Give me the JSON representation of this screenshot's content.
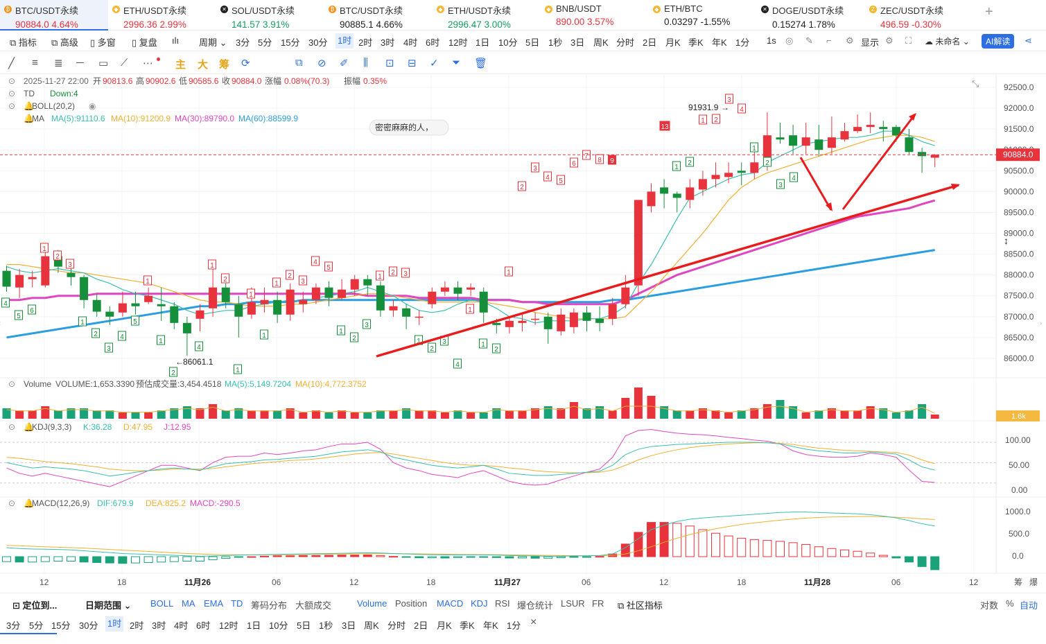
{
  "tabs": [
    {
      "name": "BTC/USDT永续",
      "value": "90884.0  4.64%",
      "dir": "up",
      "icon": "bitcoin-icon",
      "active": true
    },
    {
      "name": "ETH/USDT永续",
      "value": "2996.36  2.99%",
      "dir": "up",
      "icon": "ethereum-icon"
    },
    {
      "name": "SOL/USDT永续",
      "value": "141.57  3.91%",
      "dir": "dn",
      "icon": "solana-icon"
    },
    {
      "name": "BTC/USDT永续",
      "value": "90885.1  4.66%",
      "dir": "blk",
      "icon": "bitcoin-icon"
    },
    {
      "name": "ETH/USDT永续",
      "value": "2996.47  3.00%",
      "dir": "dn",
      "icon": "ethereum-icon"
    },
    {
      "name": "BNB/USDT",
      "value": "890.00  3.57%",
      "dir": "up",
      "icon": "bnb-icon"
    },
    {
      "name": "ETH/BTC",
      "value": "0.03297  -1.55%",
      "dir": "blk",
      "icon": "ethereum-icon"
    },
    {
      "name": "DOGE/USDT永续",
      "value": "0.15274  1.78%",
      "dir": "blk",
      "icon": "dogecoin-icon"
    },
    {
      "name": "ZEC/USDT永续",
      "value": "496.59  -0.30%",
      "dir": "up",
      "icon": "zcash-icon"
    }
  ],
  "add_tab": "+",
  "toolbar": {
    "left": [
      "指标",
      "高级",
      "多窗",
      "复盘"
    ],
    "period_label": "周期",
    "periods": [
      "3分",
      "5分",
      "15分",
      "30分",
      "1时",
      "2时",
      "3时",
      "4时",
      "6时",
      "12时",
      "1日",
      "10分",
      "5日",
      "1秒",
      "3日",
      "周K",
      "分时",
      "2日",
      "月K",
      "季K",
      "年K",
      "1分"
    ],
    "selected_period": "1时",
    "interval": "1s",
    "display": "显示",
    "unnamed": "未命名",
    "ai_button": "AI解读"
  },
  "drawbar": {
    "labels": [
      "主",
      "大",
      "筹"
    ]
  },
  "info": {
    "time": "2025-11-27 22:00",
    "open_label": "开",
    "open": "90813.6",
    "high_label": "高",
    "high": "90902.6",
    "low_label": "低",
    "low": "90585.6",
    "close_label": "收",
    "close": "90884.0",
    "change_label": "涨幅",
    "change": "0.08%(70.3)",
    "amp_label": "振幅",
    "amp": "0.35%",
    "td": "TD",
    "td_val": "Down:4",
    "boll": "BOLL(20,2)",
    "ma_label": "MA",
    "ma5": "MA(5):91110.6",
    "ma10": "MA(10):91200.9",
    "ma30": "MA(30):89790.0",
    "ma60": "MA(60):88599.9"
  },
  "annotation": "密密麻麻的人，",
  "high_mark": "91931.9",
  "low_mark": "86061.1",
  "price_tag": "90884.0",
  "price_axis": [
    "92500.0",
    "92000.0",
    "91500.0",
    "91000.0",
    "90500.0",
    "90000.0",
    "89500.0",
    "89000.0",
    "88500.0",
    "88000.0",
    "87500.0",
    "87000.0",
    "86500.0",
    "86000.0"
  ],
  "volume": {
    "label": "Volume",
    "vol": "VOLUME:1,653.3390",
    "est": "预估成交量:3,454.4518",
    "ma5": "MA(5):5,149.7204",
    "ma10": "MA(10):4,772.3752",
    "tag": "1.6k"
  },
  "kdj": {
    "label": "KDJ(9,3,3)",
    "k": "K:36.28",
    "d": "D:47.95",
    "j": "J:12.95",
    "axis": [
      "100.00",
      "50.00",
      "0.00"
    ]
  },
  "macd": {
    "label": "MACD(12,26,9)",
    "dif": "DIF:679.9",
    "dea": "DEA:825.2",
    "macd": "MACD:-290.5",
    "axis": [
      "1000.0",
      "500.0",
      "0.0"
    ]
  },
  "time_axis": [
    "12",
    "18",
    "11月26",
    "06",
    "12",
    "18",
    "11月27",
    "06",
    "12",
    "18",
    "11月28",
    "06",
    "12",
    "筹",
    "爆"
  ],
  "bottom1": {
    "locate": "定位到...",
    "range": "日期范围",
    "indicators": [
      "BOLL",
      "MA",
      "EMA",
      "TD",
      "筹码分布",
      "大额成交"
    ],
    "subs": [
      "Volume",
      "Position",
      "MACD",
      "KDJ",
      "RSI",
      "爆仓统计",
      "LSUR",
      "FR"
    ],
    "community": "社区指标",
    "right": [
      "对数",
      "%",
      "自动"
    ]
  },
  "bottom2": {
    "periods": [
      "3分",
      "5分",
      "15分",
      "30分",
      "1时",
      "2时",
      "3时",
      "4时",
      "6时",
      "12时",
      "1日",
      "10分",
      "5日",
      "1秒",
      "3日",
      "周K",
      "分时",
      "2日",
      "月K",
      "季K",
      "年K",
      "1分"
    ],
    "selected": "1时",
    "close": "×"
  },
  "chart_data": {
    "type": "candlestick",
    "ylim": [
      85700,
      92700
    ],
    "candles": [
      [
        88100,
        87720,
        88220,
        87600
      ],
      [
        87700,
        88000,
        88150,
        87450
      ],
      [
        87900,
        87950,
        88100,
        87700
      ],
      [
        87750,
        88450,
        88550,
        87700
      ],
      [
        88450,
        88200,
        88600,
        88050
      ],
      [
        88050,
        87950,
        88150,
        87750
      ],
      [
        87950,
        87400,
        88000,
        87200
      ],
      [
        87400,
        87120,
        87550,
        87000
      ],
      [
        87120,
        87000,
        87250,
        86800
      ],
      [
        87100,
        87320,
        87600,
        87000
      ],
      [
        87320,
        87250,
        87600,
        87050
      ],
      [
        87350,
        87500,
        87700,
        87300
      ],
      [
        87300,
        87250,
        87700,
        86900
      ],
      [
        87250,
        86850,
        87350,
        86700
      ],
      [
        86850,
        86600,
        87000,
        86060
      ],
      [
        86950,
        87150,
        87300,
        86650
      ],
      [
        87200,
        87700,
        88200,
        87000
      ],
      [
        87700,
        87350,
        87800,
        87200
      ],
      [
        87300,
        87000,
        87500,
        86500
      ],
      [
        87050,
        87350,
        87700,
        86950
      ],
      [
        87300,
        87400,
        87700,
        87100
      ],
      [
        87400,
        87050,
        87600,
        86850
      ],
      [
        87050,
        87650,
        87800,
        86900
      ],
      [
        87300,
        87400,
        87600,
        87100
      ],
      [
        87400,
        87700,
        87800,
        87300
      ],
      [
        87700,
        87450,
        87850,
        87250
      ],
      [
        87450,
        87650,
        87900,
        87400
      ],
      [
        87650,
        87900,
        88000,
        87500
      ],
      [
        87900,
        87750,
        88000,
        87500
      ],
      [
        87750,
        87150,
        87850,
        87000
      ],
      [
        87150,
        87250,
        87400,
        87000
      ],
      [
        87200,
        87000,
        87300,
        86700
      ],
      [
        87000,
        87000,
        87150,
        86800
      ],
      [
        87300,
        87600,
        87700,
        87200
      ],
      [
        87600,
        87700,
        87850,
        87500
      ],
      [
        87700,
        87550,
        87850,
        87400
      ],
      [
        87650,
        87700,
        87800,
        87500
      ],
      [
        87600,
        87100,
        87700,
        86850
      ],
      [
        86850,
        86800,
        86950,
        86600
      ],
      [
        86750,
        86900,
        87000,
        86600
      ],
      [
        86850,
        86900,
        87050,
        86650
      ],
      [
        86950,
        86950,
        87100,
        86800
      ],
      [
        87000,
        86700,
        87100,
        86350
      ],
      [
        86650,
        87050,
        87200,
        86550
      ],
      [
        86750,
        87100,
        87200,
        86600
      ],
      [
        87100,
        86900,
        87250,
        86650
      ],
      [
        86950,
        86850,
        87250,
        86650
      ],
      [
        86950,
        87300,
        87450,
        86800
      ],
      [
        87300,
        87700,
        88000,
        87200
      ],
      [
        87750,
        89800,
        89800,
        87500
      ],
      [
        89650,
        90000,
        90200,
        89500
      ],
      [
        90100,
        89950,
        90300,
        89600
      ],
      [
        89950,
        89850,
        90000,
        89500
      ],
      [
        89800,
        90100,
        90300,
        89600
      ],
      [
        90050,
        90300,
        90500,
        89900
      ],
      [
        90300,
        90400,
        90700,
        90100
      ],
      [
        90350,
        90450,
        90700,
        90200
      ],
      [
        90500,
        90450,
        90700,
        90150
      ],
      [
        90450,
        90700,
        91000,
        90300
      ],
      [
        90650,
        91350,
        91900,
        90500
      ],
      [
        91300,
        91250,
        91650,
        91150
      ],
      [
        91350,
        91100,
        91600,
        90900
      ],
      [
        91100,
        91300,
        91650,
        90900
      ],
      [
        91250,
        91000,
        91600,
        90850
      ],
      [
        91050,
        91300,
        91800,
        90900
      ],
      [
        91250,
        91450,
        91650,
        91200
      ],
      [
        91450,
        91550,
        91850,
        91400
      ],
      [
        91550,
        91600,
        91900,
        91400
      ],
      [
        91550,
        91500,
        91700,
        91200
      ],
      [
        91550,
        91350,
        91600,
        91200
      ],
      [
        91300,
        90950,
        91500,
        90900
      ],
      [
        90950,
        90850,
        91050,
        90450
      ],
      [
        90813,
        90884,
        90902,
        90585
      ]
    ],
    "ma5": [
      88200,
      88100,
      88050,
      88100,
      88150,
      88100,
      88050,
      87900,
      87800,
      87650,
      87550,
      87500,
      87400,
      87300,
      87150,
      87050,
      87100,
      87150,
      87150,
      87250,
      87300,
      87350,
      87400,
      87350,
      87450,
      87500,
      87550,
      87600,
      87700,
      87600,
      87500,
      87300,
      87150,
      87100,
      87150,
      87300,
      87400,
      87350,
      87200,
      87000,
      86950,
      86850,
      86900,
      86900,
      86900,
      86950,
      86950,
      87050,
      87250,
      87800,
      88250,
      88800,
      89350,
      89850,
      90000,
      90150,
      90300,
      90400,
      90450,
      90700,
      90850,
      91000,
      91150,
      91200,
      91250,
      91300,
      91300,
      91350,
      91450,
      91450,
      91350,
      91200,
      91100
    ],
    "ma10": [
      88250,
      88250,
      88200,
      88150,
      88100,
      88050,
      88050,
      88000,
      87950,
      87900,
      87850,
      87800,
      87700,
      87600,
      87500,
      87400,
      87350,
      87350,
      87300,
      87250,
      87250,
      87250,
      87300,
      87300,
      87350,
      87400,
      87450,
      87500,
      87550,
      87550,
      87500,
      87450,
      87400,
      87350,
      87350,
      87350,
      87350,
      87350,
      87300,
      87250,
      87200,
      87100,
      87050,
      87000,
      86950,
      86950,
      86950,
      86950,
      87000,
      87300,
      87600,
      87950,
      88300,
      88650,
      89000,
      89400,
      89800,
      90100,
      90300,
      90450,
      90550,
      90650,
      90750,
      90850,
      90950,
      91050,
      91150,
      91250,
      91300,
      91350,
      91350,
      91300,
      91200
    ],
    "ma30": [
      87400,
      87400,
      87450,
      87450,
      87500,
      87500,
      87500,
      87550,
      87550,
      87550,
      87550,
      87550,
      87550,
      87550,
      87550,
      87550,
      87550,
      87550,
      87550,
      87550,
      87550,
      87550,
      87550,
      87550,
      87550,
      87550,
      87550,
      87550,
      87500,
      87500,
      87500,
      87500,
      87450,
      87450,
      87450,
      87450,
      87450,
      87400,
      87400,
      87400,
      87350,
      87350,
      87300,
      87300,
      87300,
      87300,
      87300,
      87300,
      87400,
      87550,
      87700,
      87850,
      88000,
      88100,
      88200,
      88300,
      88400,
      88500,
      88600,
      88700,
      88800,
      88900,
      89000,
      89100,
      89200,
      89300,
      89400,
      89450,
      89500,
      89550,
      89600,
      89700,
      89790
    ],
    "ma60": [
      86500,
      86550,
      86600,
      86650,
      86700,
      86750,
      86800,
      86850,
      86900,
      86950,
      87000,
      87050,
      87100,
      87150,
      87200,
      87250,
      87250,
      87300,
      87300,
      87350,
      87350,
      87350,
      87350,
      87400,
      87400,
      87400,
      87400,
      87400,
      87400,
      87400,
      87400,
      87400,
      87400,
      87400,
      87400,
      87400,
      87400,
      87400,
      87400,
      87400,
      87350,
      87350,
      87350,
      87350,
      87350,
      87350,
      87350,
      87400,
      87400,
      87450,
      87500,
      87550,
      87600,
      87650,
      87700,
      87750,
      87800,
      87850,
      87900,
      87950,
      88000,
      88050,
      88100,
      88150,
      88200,
      88250,
      88300,
      88350,
      88400,
      88450,
      88500,
      88550,
      88600
    ],
    "volume": [
      0.5,
      0.4,
      0.4,
      0.6,
      0.4,
      0.5,
      0.5,
      0.4,
      0.4,
      0.3,
      0.3,
      0.3,
      0.4,
      0.5,
      0.6,
      0.5,
      0.7,
      0.4,
      0.5,
      0.4,
      0.4,
      0.4,
      0.5,
      0.3,
      0.4,
      0.3,
      0.4,
      0.3,
      0.3,
      0.4,
      0.4,
      0.5,
      0.4,
      0.4,
      0.3,
      0.4,
      0.3,
      0.3,
      0.5,
      0.4,
      0.4,
      0.5,
      0.6,
      0.5,
      0.8,
      0.5,
      0.6,
      0.4,
      1.0,
      1.5,
      1.1,
      0.6,
      0.4,
      0.4,
      0.5,
      0.4,
      0.3,
      0.4,
      0.5,
      0.7,
      0.9,
      0.6,
      0.3,
      0.4,
      0.5,
      0.4,
      0.4,
      0.6,
      0.5,
      0.3,
      0.4,
      0.7,
      0.2
    ],
    "kdj_k": [
      50,
      45,
      40,
      42,
      40,
      38,
      35,
      30,
      25,
      28,
      32,
      35,
      38,
      40,
      38,
      36,
      42,
      48,
      50,
      52,
      55,
      56,
      58,
      60,
      62,
      66,
      70,
      72,
      74,
      70,
      60,
      55,
      50,
      45,
      42,
      40,
      42,
      45,
      38,
      30,
      28,
      26,
      26,
      28,
      30,
      32,
      34,
      45,
      65,
      75,
      80,
      82,
      84,
      85,
      86,
      87,
      88,
      88,
      88,
      87,
      85,
      80,
      75,
      72,
      70,
      68,
      68,
      70,
      68,
      66,
      55,
      42,
      36
    ],
    "kdj_d": [
      60,
      58,
      55,
      52,
      50,
      48,
      45,
      42,
      38,
      36,
      35,
      35,
      36,
      38,
      38,
      38,
      39,
      42,
      45,
      48,
      50,
      52,
      54,
      55,
      57,
      60,
      63,
      66,
      68,
      69,
      66,
      62,
      58,
      54,
      50,
      47,
      45,
      45,
      43,
      40,
      38,
      35,
      33,
      32,
      31,
      31,
      32,
      36,
      45,
      55,
      63,
      69,
      74,
      78,
      81,
      83,
      85,
      86,
      87,
      87,
      86,
      84,
      80,
      77,
      75,
      73,
      72,
      71,
      70,
      69,
      64,
      55,
      48
    ],
    "kdj_j": [
      40,
      30,
      25,
      30,
      25,
      20,
      15,
      10,
      5,
      15,
      25,
      35,
      45,
      45,
      40,
      35,
      50,
      60,
      62,
      62,
      68,
      65,
      68,
      72,
      74,
      80,
      85,
      85,
      88,
      75,
      50,
      40,
      35,
      28,
      25,
      22,
      30,
      35,
      25,
      15,
      10,
      8,
      10,
      18,
      25,
      32,
      38,
      60,
      100,
      110,
      112,
      108,
      105,
      103,
      102,
      100,
      97,
      95,
      92,
      90,
      85,
      72,
      65,
      62,
      60,
      60,
      62,
      68,
      65,
      60,
      36,
      15,
      13
    ],
    "macd_dif": [
      200,
      180,
      170,
      165,
      160,
      150,
      130,
      110,
      90,
      70,
      60,
      50,
      40,
      30,
      20,
      10,
      15,
      25,
      35,
      40,
      45,
      50,
      55,
      60,
      65,
      70,
      75,
      80,
      85,
      80,
      70,
      60,
      50,
      45,
      40,
      40,
      40,
      40,
      35,
      25,
      20,
      15,
      10,
      12,
      15,
      20,
      25,
      60,
      200,
      400,
      600,
      700,
      780,
      830,
      860,
      880,
      900,
      920,
      940,
      960,
      980,
      990,
      990,
      980,
      970,
      960,
      950,
      930,
      900,
      860,
      800,
      730,
      680
    ],
    "macd_dea": [
      250,
      240,
      230,
      220,
      210,
      200,
      190,
      175,
      160,
      145,
      130,
      115,
      100,
      85,
      70,
      60,
      50,
      45,
      42,
      40,
      40,
      42,
      45,
      48,
      52,
      55,
      58,
      62,
      66,
      68,
      68,
      66,
      62,
      58,
      54,
      50,
      48,
      46,
      44,
      40,
      36,
      32,
      28,
      25,
      22,
      22,
      22,
      28,
      60,
      130,
      220,
      320,
      410,
      490,
      560,
      620,
      670,
      715,
      750,
      780,
      810,
      835,
      855,
      870,
      880,
      885,
      890,
      890,
      885,
      875,
      860,
      840,
      825
    ],
    "macd_hist": [
      -110,
      -120,
      -120,
      -110,
      -100,
      -100,
      -120,
      -130,
      -140,
      -150,
      -140,
      -130,
      -120,
      -110,
      -100,
      -100,
      -70,
      -40,
      -15,
      0,
      10,
      20,
      20,
      25,
      25,
      30,
      35,
      35,
      38,
      25,
      5,
      -10,
      -25,
      -25,
      -30,
      -20,
      -15,
      -12,
      -20,
      -30,
      -30,
      -35,
      -35,
      -25,
      -15,
      -5,
      5,
      60,
      280,
      540,
      760,
      760,
      740,
      680,
      600,
      520,
      460,
      410,
      380,
      360,
      340,
      310,
      270,
      220,
      180,
      150,
      120,
      80,
      30,
      -30,
      -120,
      -220,
      -290
    ]
  }
}
